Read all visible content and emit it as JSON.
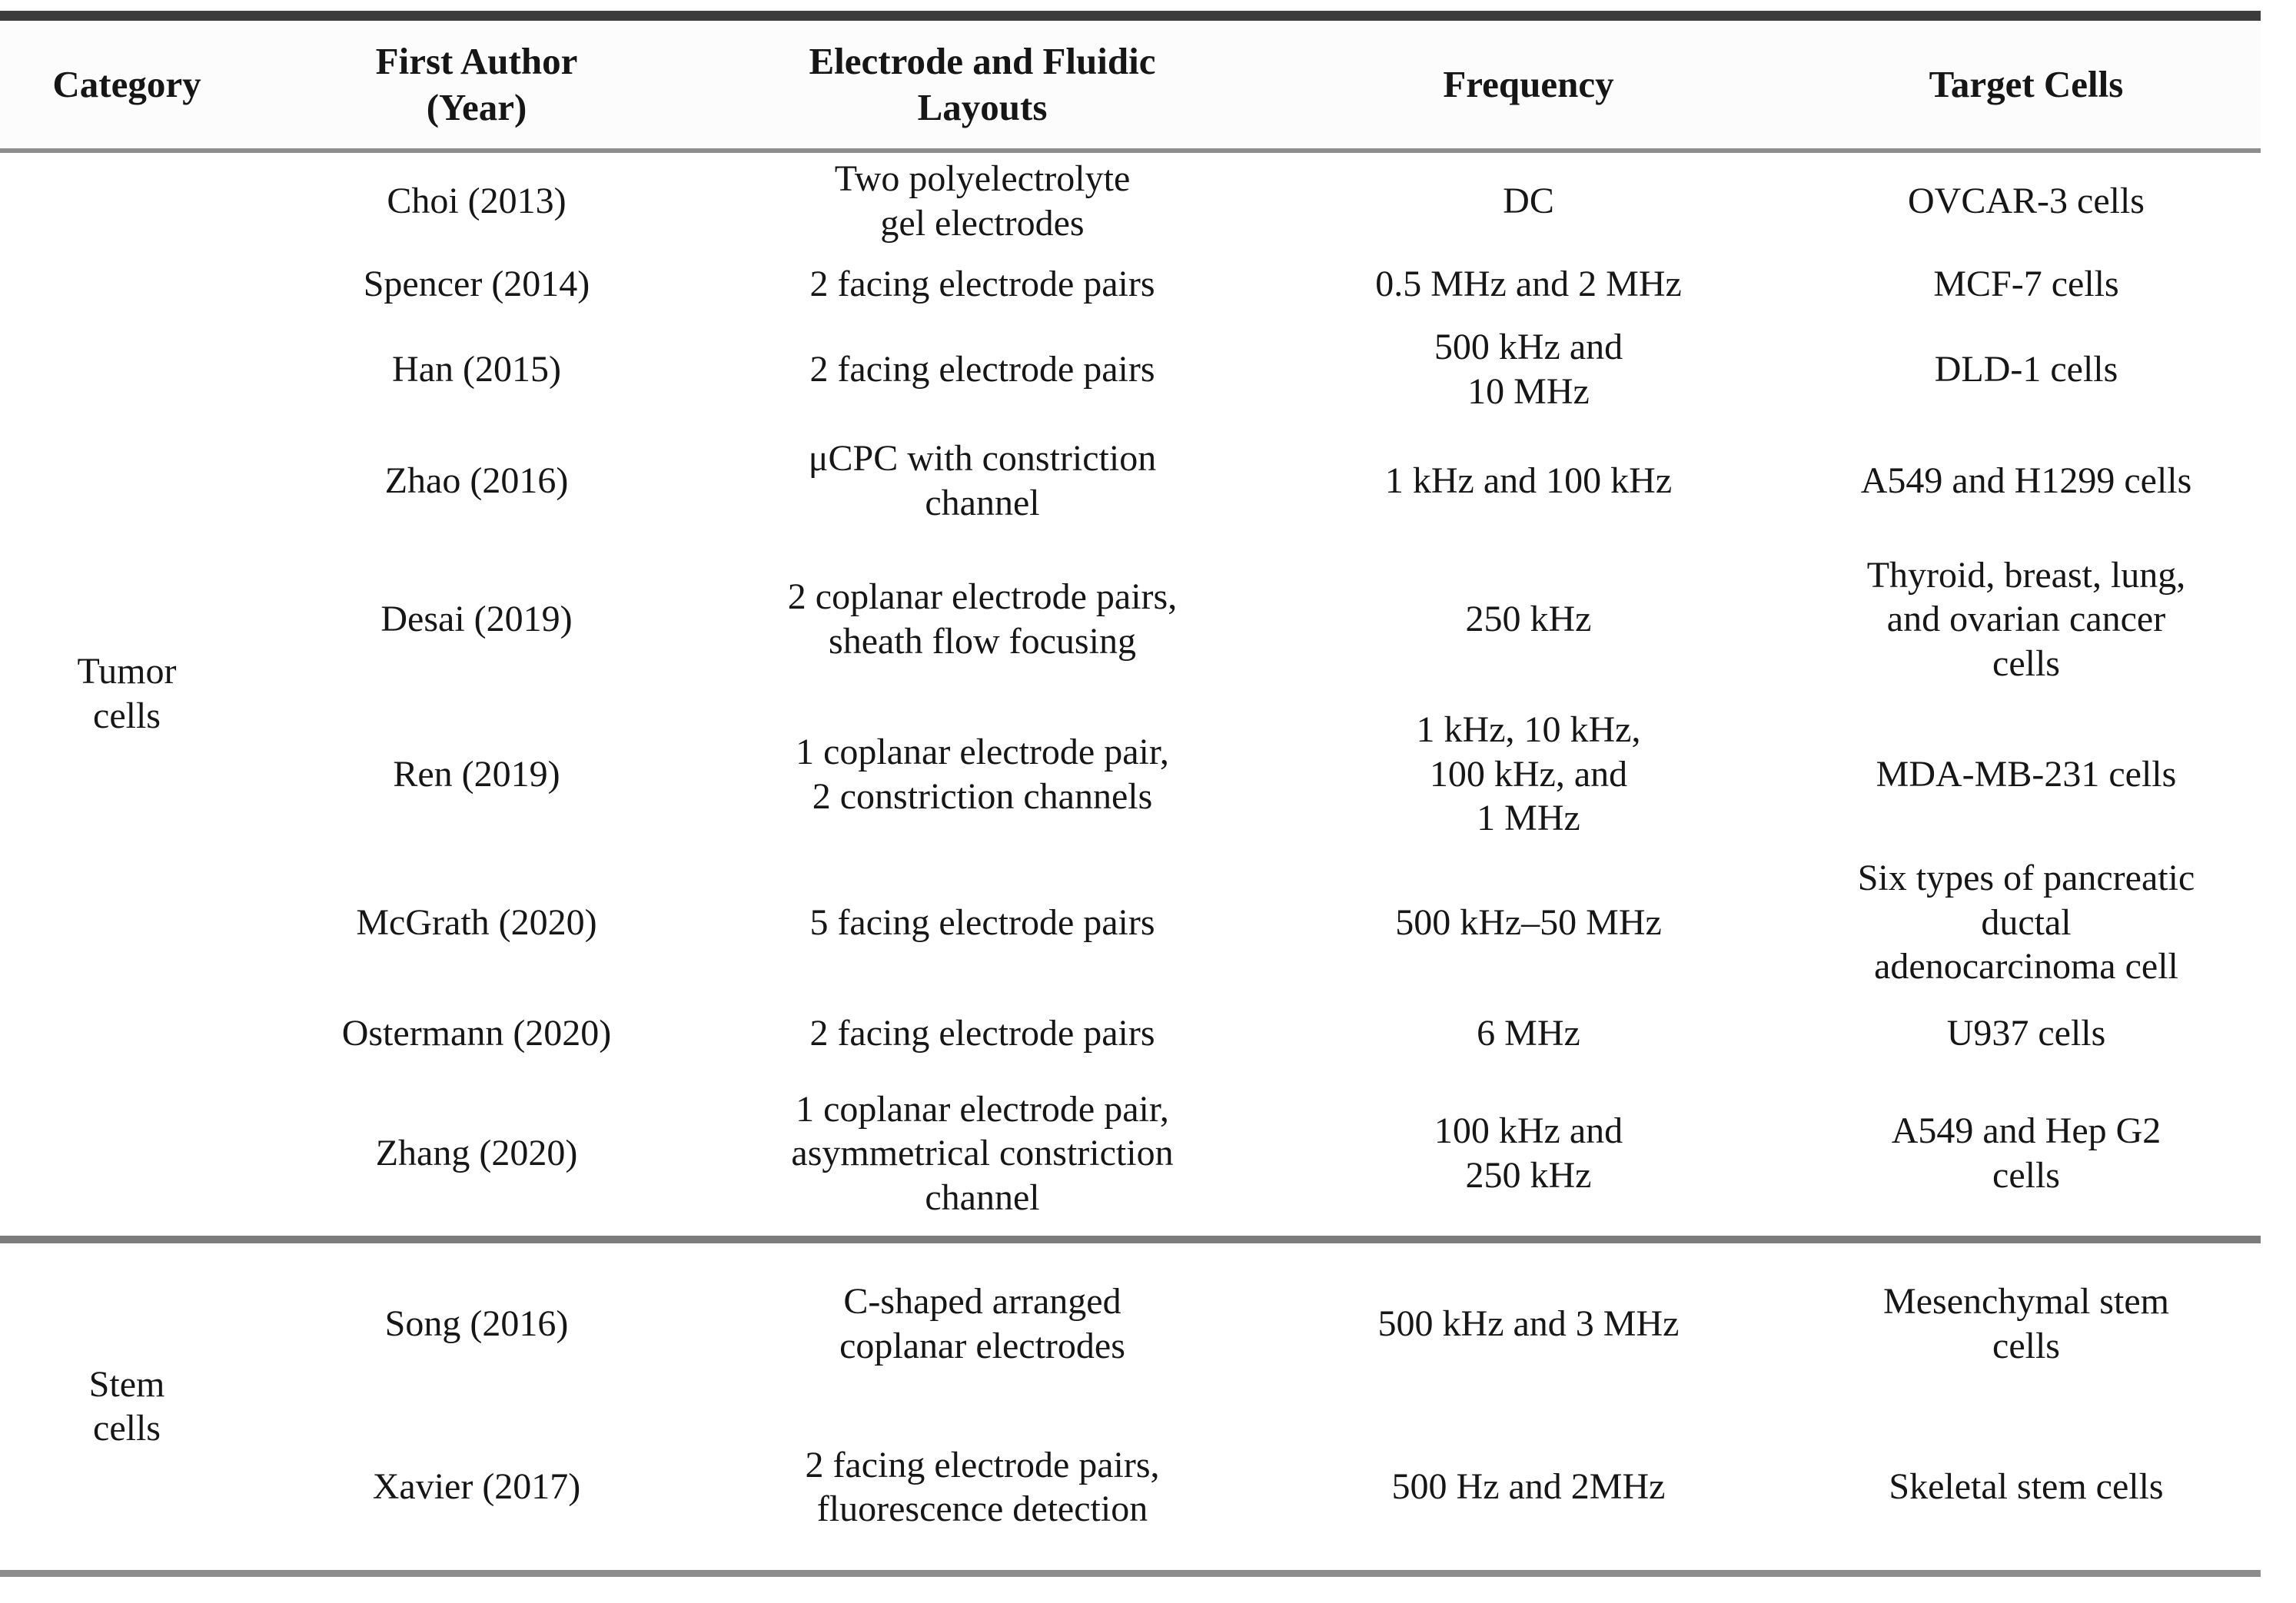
{
  "table": {
    "columns": [
      "Category",
      "First Author\n(Year)",
      "Electrode and Fluidic\nLayouts",
      "Frequency",
      "Target Cells"
    ],
    "sections": [
      {
        "category": "Tumor\ncells",
        "rows": [
          {
            "author": "Choi (2013)",
            "layout": "Two polyelectrolyte\ngel electrodes",
            "frequency": "DC",
            "target": "OVCAR-3 cells"
          },
          {
            "author": "Spencer (2014)",
            "layout": "2 facing electrode pairs",
            "frequency": "0.5 MHz and 2 MHz",
            "target": "MCF-7 cells"
          },
          {
            "author": "Han (2015)",
            "layout": "2 facing electrode pairs",
            "frequency": "500 kHz and\n10 MHz",
            "target": "DLD-1 cells"
          },
          {
            "author": "Zhao (2016)",
            "layout": "μCPC with constriction\nchannel",
            "frequency": "1 kHz and 100 kHz",
            "target": "A549 and H1299 cells"
          },
          {
            "author": "Desai (2019)",
            "layout": "2 coplanar electrode pairs,\nsheath flow focusing",
            "frequency": "250 kHz",
            "target": "Thyroid, breast, lung,\nand ovarian cancer\ncells"
          },
          {
            "author": "Ren (2019)",
            "layout": "1 coplanar electrode pair,\n2 constriction channels",
            "frequency": "1 kHz, 10 kHz,\n100 kHz, and\n1 MHz",
            "target": "MDA-MB-231 cells"
          },
          {
            "author": "McGrath (2020)",
            "layout": "5 facing electrode pairs",
            "frequency": "500 kHz–50 MHz",
            "target": "Six types of pancreatic\nductal\nadenocarcinoma cell"
          },
          {
            "author": "Ostermann (2020)",
            "layout": "2 facing electrode pairs",
            "frequency": "6 MHz",
            "target": "U937 cells"
          },
          {
            "author": "Zhang (2020)",
            "layout": "1 coplanar electrode pair,\nasymmetrical constriction\nchannel",
            "frequency": "100 kHz and\n250 kHz",
            "target": "A549 and Hep G2\ncells"
          }
        ]
      },
      {
        "category": "Stem\ncells",
        "rows": [
          {
            "author": "Song (2016)",
            "layout": "C-shaped arranged\ncoplanar electrodes",
            "frequency": "500 kHz and 3 MHz",
            "target": "Mesenchymal stem\ncells"
          },
          {
            "author": "Xavier (2017)",
            "layout": "2 facing electrode pairs,\nfluorescence detection",
            "frequency": "500 Hz and 2MHz",
            "target": "Skeletal stem cells"
          }
        ]
      }
    ]
  },
  "colors": {
    "text": "#161616",
    "top_border": "#3b3b3b",
    "header_rule": "#8e8e8e",
    "section_divider": "#7c7c7c",
    "bottom_border": "#8d8d8d",
    "background": "#ffffff"
  }
}
